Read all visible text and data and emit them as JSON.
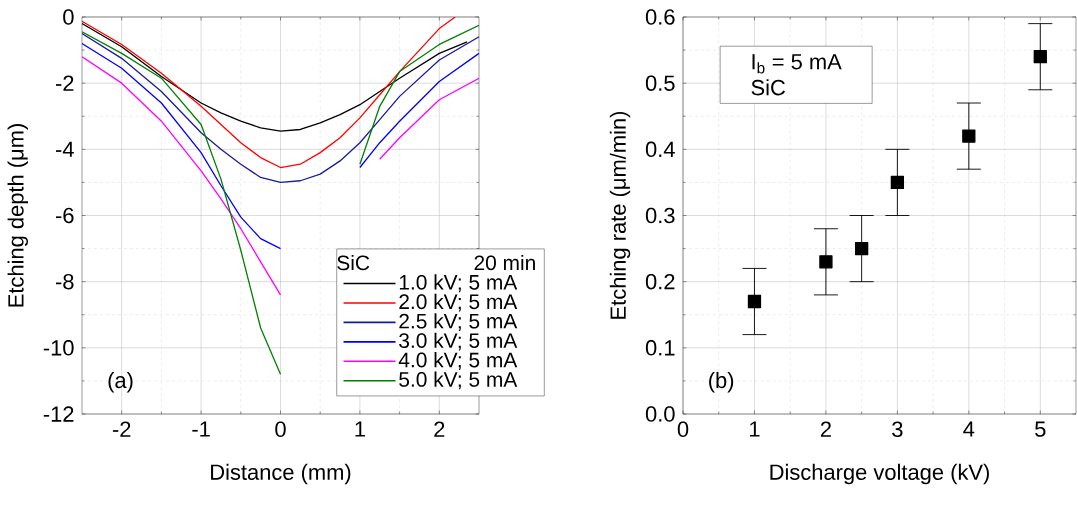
{
  "chart_data": [
    {
      "type": "line",
      "xlabel": "Distance (mm)",
      "ylabel": "Etching depth (μm)",
      "legend_title": "SiC",
      "annotations": [
        "(a)",
        "20 min"
      ],
      "xlim": [
        -2.5,
        2.5
      ],
      "ylim": [
        -12,
        0
      ],
      "xticks": [
        -2,
        -1,
        0,
        1,
        2
      ],
      "yticks": [
        -12,
        -10,
        -8,
        -6,
        -4,
        -2,
        0
      ],
      "grid": true,
      "legend": "bottom right",
      "marker": "none",
      "line_style": "solid",
      "series": [
        {
          "name": "1.0 kV; 5 mA",
          "color": "#000000",
          "x": [
            -2.5,
            -2,
            -1.5,
            -1,
            -0.75,
            -0.5,
            -0.25,
            0,
            0.25,
            0.5,
            0.75,
            1,
            1.25,
            1.5,
            2,
            2.35
          ],
          "values": [
            -0.2,
            -0.9,
            -1.8,
            -2.6,
            -2.9,
            -3.15,
            -3.35,
            -3.45,
            -3.4,
            -3.2,
            -2.95,
            -2.65,
            -2.25,
            -1.85,
            -1.1,
            -0.75
          ]
        },
        {
          "name": "2.0 kV; 5 mA",
          "color": "#ff0000",
          "x": [
            -2.5,
            -2,
            -1.5,
            -1,
            -0.75,
            -0.5,
            -0.25,
            0,
            0.25,
            0.5,
            0.75,
            1,
            1.25,
            1.5,
            2,
            2.2
          ],
          "values": [
            -0.13,
            -0.83,
            -1.7,
            -2.7,
            -3.25,
            -3.8,
            -4.25,
            -4.55,
            -4.45,
            -4.1,
            -3.65,
            -3.05,
            -2.35,
            -1.65,
            -0.35,
            0
          ]
        },
        {
          "name": "2.5 kV; 5 mA",
          "color": "#1a1a9c",
          "x": [
            -2.5,
            -2,
            -1.5,
            -1,
            -0.75,
            -0.5,
            -0.25,
            0,
            0.25,
            0.5,
            0.75,
            1,
            1.25,
            1.5,
            2,
            2.5
          ],
          "values": [
            -0.5,
            -1.25,
            -2.25,
            -3.5,
            -4.0,
            -4.45,
            -4.85,
            -5.0,
            -4.95,
            -4.75,
            -4.35,
            -3.8,
            -3.1,
            -2.4,
            -1.3,
            -0.6
          ]
        },
        {
          "name": "3.0 kV; 5 mA",
          "color": "#0000ff",
          "x": [
            -2.5,
            -2,
            -1.5,
            -1,
            -0.75,
            -0.5,
            -0.25,
            0,
            0.25,
            0.5,
            0.75,
            1,
            1.25,
            1.5,
            2,
            2.5
          ],
          "values": [
            -0.8,
            -1.55,
            -2.6,
            -4.1,
            -5.1,
            -6.05,
            -6.7,
            -7.0,
            null,
            null,
            null,
            -4.55,
            -3.8,
            -3.15,
            -1.95,
            -1.1
          ]
        },
        {
          "name": "4.0 kV; 5 mA",
          "color": "#ff00ff",
          "x": [
            -2.5,
            -2,
            -1.5,
            -1,
            -0.75,
            -0.5,
            -0.25,
            0,
            0.25,
            0.5,
            0.75,
            1,
            1.25,
            1.5,
            2,
            2.5
          ],
          "values": [
            -1.2,
            -2.0,
            -3.15,
            -4.65,
            -5.5,
            -6.4,
            -7.4,
            -8.4,
            null,
            null,
            null,
            null,
            -4.3,
            -3.65,
            -2.5,
            -1.85
          ]
        },
        {
          "name": "5.0 kV; 5 mA",
          "color": "#008000",
          "x": [
            -2.5,
            -2,
            -1.5,
            -1,
            -0.75,
            -0.5,
            -0.25,
            0,
            0.25,
            0.5,
            0.75,
            1,
            1.25,
            1.5,
            2,
            2.5
          ],
          "values": [
            -0.45,
            -1.1,
            -1.85,
            -3.25,
            -4.9,
            -7.05,
            -9.4,
            -10.8,
            null,
            null,
            null,
            -4.45,
            -2.7,
            -1.65,
            -0.83,
            -0.25
          ]
        }
      ]
    },
    {
      "type": "scatter",
      "xlabel": "Discharge voltage (kV)",
      "ylabel": "Etching rate (μm/min)",
      "annotations": [
        "(b)",
        "I$_{b}$ = 5 mA",
        "SiC"
      ],
      "xlim": [
        0,
        5.5
      ],
      "ylim": [
        0,
        0.6
      ],
      "xticks": [
        0,
        1,
        2,
        3,
        4,
        5
      ],
      "yticks": [
        {
          "value": 0,
          "label": "0.0"
        },
        0.1,
        0.2,
        0.3,
        0.4,
        0.5,
        0.6
      ],
      "grid": true,
      "marker": "square",
      "color": "#000000",
      "x": [
        1,
        2,
        2.5,
        3,
        4,
        5
      ],
      "values": [
        0.17,
        0.23,
        0.25,
        0.35,
        0.42,
        0.54
      ],
      "errors": [
        0.05,
        0.05,
        0.05,
        0.05,
        0.05,
        0.05
      ]
    }
  ]
}
